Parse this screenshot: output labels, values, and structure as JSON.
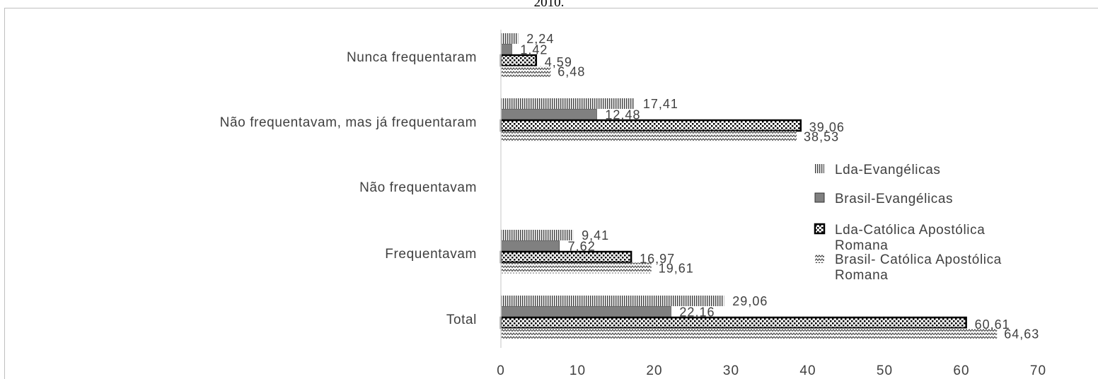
{
  "title_fragment": "2010.",
  "chart_data": {
    "type": "bar",
    "orientation": "horizontal",
    "categories": [
      "Nunca frequentaram",
      "Não frequentavam, mas já frequentaram",
      "Não frequentavam",
      "Frequentavam",
      "Total"
    ],
    "series": [
      {
        "name": "Lda-Evangélicas",
        "values": [
          2.24,
          17.41,
          null,
          9.41,
          29.06
        ],
        "labels": [
          "2,24",
          "17,41",
          "",
          "9,41",
          "29,06"
        ],
        "pattern": "vertical-lines"
      },
      {
        "name": "Brasil-Evangélicas",
        "values": [
          1.42,
          12.48,
          null,
          7.62,
          22.16
        ],
        "labels": [
          "1,42",
          "12,48",
          "",
          "7,62",
          "22,16"
        ],
        "pattern": "solid-gray"
      },
      {
        "name": "Lda-Católica Apostólica Romana",
        "values": [
          4.59,
          39.06,
          null,
          16.97,
          60.61
        ],
        "labels": [
          "4,59",
          "39,06",
          "",
          "16,97",
          "60,61"
        ],
        "pattern": "dots-bold-border"
      },
      {
        "name": "Brasil- Católica Apostólica Romana",
        "values": [
          6.48,
          38.53,
          null,
          19.61,
          64.63
        ],
        "labels": [
          "6,48",
          "38,53",
          "",
          "19,61",
          "64,63"
        ],
        "pattern": "zigzag"
      }
    ],
    "x_ticks": [
      "0",
      "10",
      "20",
      "30",
      "40",
      "50",
      "60",
      "70"
    ],
    "xlim": [
      0,
      70
    ],
    "grid": false,
    "legend_position": "right",
    "legend_lines": [
      [
        "Lda-Evangélicas"
      ],
      [
        "Brasil-Evangélicas"
      ],
      [
        "Lda-Católica Apostólica",
        "Romana"
      ],
      [
        "Brasil- Católica Apostólica",
        "Romana"
      ]
    ],
    "colors": {
      "gray_fill": "#808080",
      "pattern_ink": "#404040",
      "border": "#000000",
      "axis": "#d9d9d9",
      "text": "#404040"
    }
  }
}
